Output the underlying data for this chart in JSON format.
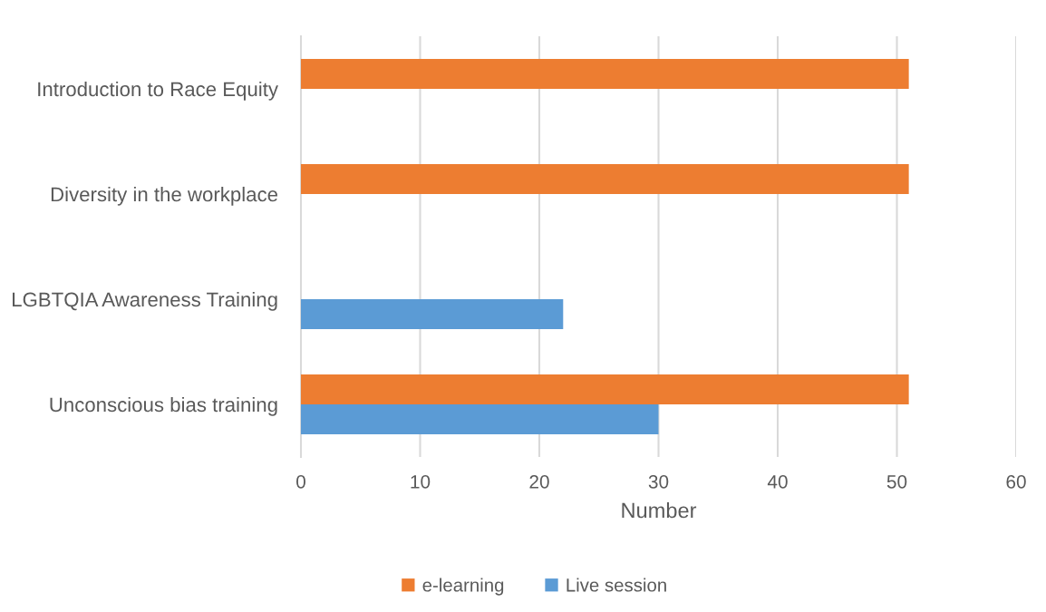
{
  "chart_data": {
    "type": "bar",
    "orientation": "horizontal",
    "categories": [
      "Introduction to Race Equity",
      "Diversity in the workplace",
      "LGBTQIA Awareness Training",
      "Unconscious bias training"
    ],
    "series": [
      {
        "name": "e-learning",
        "color": "#ed7d31",
        "values": [
          51,
          51,
          null,
          51
        ]
      },
      {
        "name": "Live session",
        "color": "#5b9bd5",
        "values": [
          null,
          null,
          22,
          30
        ]
      }
    ],
    "xlabel": "Number",
    "xlim": [
      0,
      60
    ],
    "xticks": [
      0,
      10,
      20,
      30,
      40,
      50,
      60
    ],
    "grid": "x",
    "legend": "bottom"
  }
}
